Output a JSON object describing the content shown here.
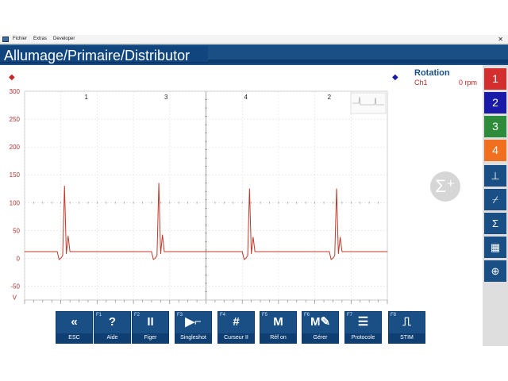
{
  "menubar": {
    "items": [
      "Fichier",
      "Extras",
      "Developer"
    ],
    "close_glyph": "✕"
  },
  "header": {
    "title": "Allumage/Primaire/Distributor"
  },
  "readout": {
    "title": "Rotation",
    "channel": "Ch1",
    "value": "0 rpm"
  },
  "sidebar": {
    "channels": [
      {
        "label": "1",
        "color": "#d32f2f"
      },
      {
        "label": "2",
        "color": "#1a1aa8"
      },
      {
        "label": "3",
        "color": "#2e8b3a"
      },
      {
        "label": "4",
        "color": "#f07020"
      }
    ],
    "tools": [
      {
        "icon": "ruler-icon",
        "glyph": "⊥"
      },
      {
        "icon": "trigger-edge-icon",
        "glyph": "⌿"
      },
      {
        "icon": "sigma-icon",
        "glyph": "Σ"
      },
      {
        "icon": "clapperboard-icon",
        "glyph": "▦"
      },
      {
        "icon": "zoom-in-icon",
        "glyph": "⊕"
      }
    ]
  },
  "sigma_plus": {
    "glyph": "Σ⁺"
  },
  "toolbar": {
    "buttons": [
      {
        "fkey": "",
        "glyph": "«",
        "label": "ESC",
        "icon": "double-chevron-left-icon"
      },
      {
        "fkey": "F1",
        "glyph": "?",
        "label": "Aide",
        "icon": "help-icon"
      },
      {
        "fkey": "F2",
        "glyph": "II",
        "label": "Figer",
        "icon": "pause-icon"
      },
      {
        "fkey": "F3",
        "glyph": "▶⌐",
        "label": "Singleshot",
        "icon": "singleshot-icon"
      },
      {
        "fkey": "F4",
        "glyph": "#",
        "label": "Curseur II",
        "icon": "cursor-grid-icon"
      },
      {
        "fkey": "F5",
        "glyph": "M",
        "label": "Réf on",
        "icon": "reference-icon"
      },
      {
        "fkey": "F6",
        "glyph": "M✎",
        "label": "Gérer",
        "icon": "manage-icon"
      },
      {
        "fkey": "F7",
        "glyph": "☰",
        "label": "Protocole",
        "icon": "protocol-icon"
      },
      {
        "fkey": "F8",
        "glyph": "⎍",
        "label": "STIM",
        "icon": "stim-icon"
      }
    ]
  },
  "chart_data": {
    "type": "line",
    "title": "",
    "xlabel": "",
    "ylabel": "",
    "y_unit_label": "V",
    "ylim": [
      -75,
      300
    ],
    "yticks": [
      300,
      250,
      200,
      150,
      100,
      50,
      0,
      -50
    ],
    "grid": true,
    "cylinder_labels": [
      "1",
      "3",
      "4",
      "2"
    ],
    "series": [
      {
        "color": "#c0392b",
        "x": [
          0,
          0.09,
          0.095,
          0.1,
          0.105,
          0.11,
          0.115,
          0.12,
          0.125,
          0.35,
          0.355,
          0.36,
          0.365,
          0.37,
          0.375,
          0.38,
          0.385,
          0.6,
          0.605,
          0.61,
          0.615,
          0.62,
          0.625,
          0.63,
          0.635,
          0.84,
          0.845,
          0.85,
          0.855,
          0.86,
          0.865,
          0.87,
          0.875,
          1
        ],
        "y": [
          12,
          12,
          -2,
          0,
          5,
          130,
          8,
          40,
          12,
          12,
          -2,
          0,
          5,
          135,
          8,
          42,
          12,
          12,
          -2,
          0,
          5,
          125,
          8,
          38,
          12,
          12,
          -2,
          0,
          5,
          125,
          8,
          38,
          12,
          12
        ]
      }
    ]
  }
}
